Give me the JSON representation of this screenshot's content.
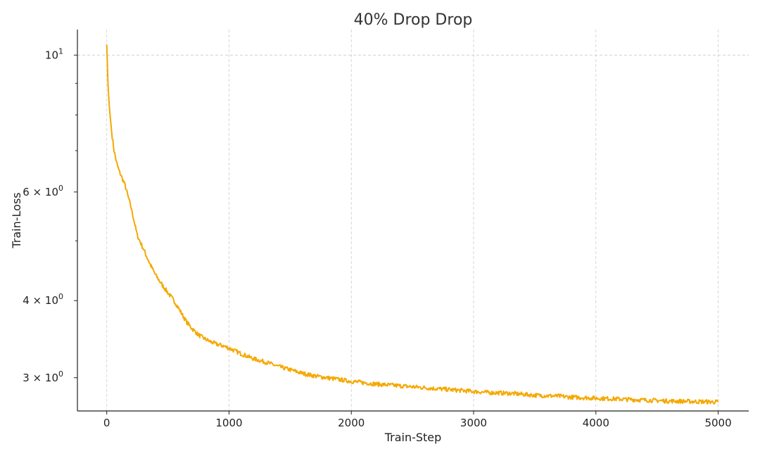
{
  "chart_data": {
    "type": "line",
    "title": "40% Drop Drop",
    "xlabel": "Train-Step",
    "ylabel": "Train-Loss",
    "yscale": "log",
    "xlim": [
      -240,
      5250
    ],
    "ylim": [
      2.65,
      11.0
    ],
    "grid": true,
    "x_ticks": [
      {
        "value": 0,
        "label": "0"
      },
      {
        "value": 1000,
        "label": "1000"
      },
      {
        "value": 2000,
        "label": "2000"
      },
      {
        "value": 3000,
        "label": "3000"
      },
      {
        "value": 4000,
        "label": "4000"
      },
      {
        "value": 5000,
        "label": "5000"
      }
    ],
    "y_ticks": [
      {
        "value": 10,
        "base": "10",
        "exp": "1"
      },
      {
        "value": 6,
        "base": "6 × 10",
        "exp": "0"
      },
      {
        "value": 4,
        "base": "4 × 10",
        "exp": "0"
      },
      {
        "value": 3,
        "base": "3 × 10",
        "exp": "0"
      }
    ],
    "y_minor_ticks": [
      5,
      7,
      8,
      9
    ],
    "series": [
      {
        "color": "#f5a800",
        "x": [
          0,
          10,
          20,
          40,
          60,
          80,
          100,
          150,
          200,
          250,
          300,
          350,
          400,
          450,
          500,
          550,
          600,
          650,
          700,
          750,
          800,
          850,
          900,
          950,
          1000,
          1100,
          1200,
          1300,
          1400,
          1500,
          1600,
          1700,
          1800,
          1900,
          2000,
          2100,
          2200,
          2300,
          2400,
          2500,
          2600,
          2700,
          2800,
          2900,
          3000,
          3100,
          3200,
          3300,
          3400,
          3500,
          3600,
          3700,
          3800,
          3900,
          4000,
          4100,
          4200,
          4300,
          4400,
          4500,
          4600,
          4700,
          4800,
          4900,
          5000
        ],
        "y": [
          10.4,
          9.0,
          8.3,
          7.5,
          7.0,
          6.7,
          6.5,
          6.15,
          5.65,
          5.1,
          4.85,
          4.6,
          4.4,
          4.25,
          4.12,
          4.0,
          3.85,
          3.7,
          3.6,
          3.52,
          3.47,
          3.43,
          3.4,
          3.38,
          3.35,
          3.28,
          3.22,
          3.18,
          3.13,
          3.09,
          3.05,
          3.02,
          3.0,
          2.98,
          2.96,
          2.945,
          2.93,
          2.92,
          2.91,
          2.9,
          2.89,
          2.88,
          2.87,
          2.86,
          2.85,
          2.84,
          2.835,
          2.83,
          2.82,
          2.81,
          2.805,
          2.8,
          2.79,
          2.785,
          2.78,
          2.775,
          2.77,
          2.765,
          2.76,
          2.755,
          2.75,
          2.748,
          2.745,
          2.743,
          2.74
        ]
      }
    ]
  }
}
